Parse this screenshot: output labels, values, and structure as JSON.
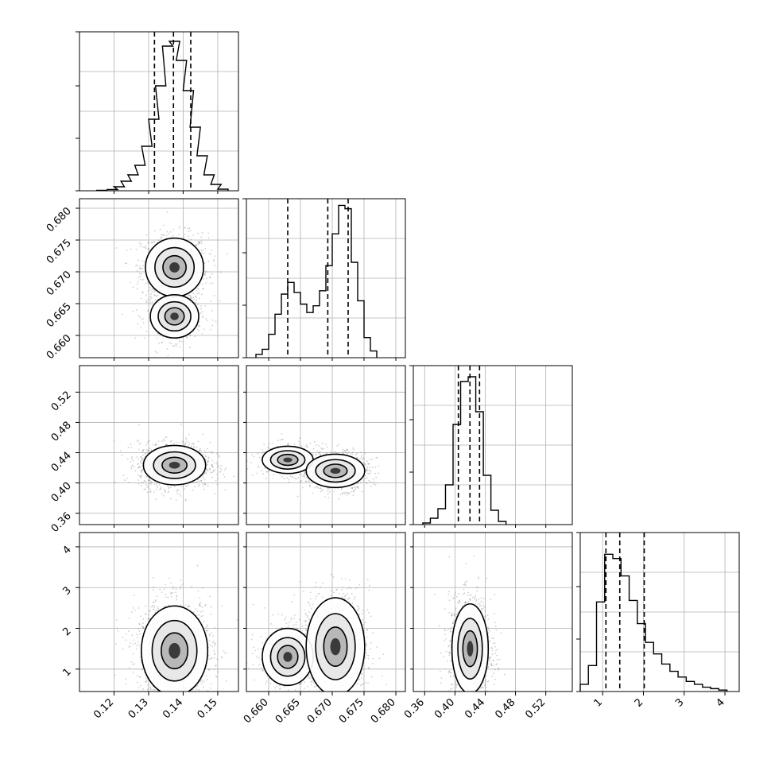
{
  "chart_data": [
    {
      "type": "histogram",
      "parameter_index": 0,
      "xlim": [
        0.11,
        0.156
      ],
      "bins_x": [
        0.1165,
        0.1195,
        0.1215,
        0.1235,
        0.1255,
        0.1275,
        0.1295,
        0.1315,
        0.1335,
        0.1355,
        0.1375,
        0.1395,
        0.1415,
        0.1435,
        0.1455,
        0.1475,
        0.1495,
        0.1515
      ],
      "values": [
        0.3,
        0.8,
        2.5,
        6,
        10,
        16,
        28,
        45,
        66,
        91,
        94,
        82,
        63,
        40,
        22,
        10,
        4,
        1
      ],
      "quantile_lines": [
        0.1317,
        0.1372,
        0.1422
      ],
      "ylim": [
        0,
        100
      ]
    },
    {
      "type": "scatter-density",
      "row": 1,
      "col": 0,
      "xlim": [
        0.11,
        0.156
      ],
      "ylim": [
        0.6565,
        0.6815
      ],
      "modes": [
        {
          "x": 0.1375,
          "y": 0.6707,
          "sx": 0.0042,
          "sy": 0.0023,
          "weight": 0.68
        },
        {
          "x": 0.1375,
          "y": 0.663,
          "sx": 0.0035,
          "sy": 0.0017,
          "weight": 0.32
        }
      ]
    },
    {
      "type": "histogram",
      "parameter_index": 1,
      "xlim": [
        0.6565,
        0.6815
      ],
      "bins_x": [
        0.6585,
        0.6595,
        0.6605,
        0.6615,
        0.6625,
        0.6635,
        0.6645,
        0.6655,
        0.6665,
        0.6675,
        0.6685,
        0.6695,
        0.6705,
        0.6715,
        0.6725,
        0.6735,
        0.6745,
        0.6755,
        0.6765
      ],
      "values": [
        2,
        5,
        14,
        26,
        38,
        45,
        39,
        32,
        27,
        31,
        40,
        55,
        74,
        91,
        89,
        57,
        34,
        12,
        4
      ],
      "quantile_lines": [
        0.663,
        0.6693,
        0.6725
      ],
      "ylim": [
        0,
        95
      ]
    },
    {
      "type": "scatter-density",
      "row": 2,
      "col": 0,
      "xlim": [
        0.11,
        0.156
      ],
      "ylim": [
        0.345,
        0.555
      ],
      "modes": [
        {
          "x": 0.1375,
          "y": 0.4235,
          "sx": 0.0045,
          "sy": 0.013,
          "weight": 1.0
        }
      ]
    },
    {
      "type": "scatter-density",
      "row": 2,
      "col": 1,
      "xlim": [
        0.6565,
        0.6815
      ],
      "ylim": [
        0.345,
        0.555
      ],
      "modes": [
        {
          "x": 0.663,
          "y": 0.4305,
          "sx": 0.002,
          "sy": 0.009,
          "weight": 0.32
        },
        {
          "x": 0.6705,
          "y": 0.416,
          "sx": 0.0023,
          "sy": 0.011,
          "weight": 0.68
        }
      ]
    },
    {
      "type": "histogram",
      "parameter_index": 2,
      "xlim": [
        0.345,
        0.555
      ],
      "bins_x": [
        0.3625,
        0.3725,
        0.3825,
        0.3925,
        0.4025,
        0.4125,
        0.4225,
        0.4325,
        0.4425,
        0.4525,
        0.4625
      ],
      "values": [
        1,
        4,
        10,
        25,
        63,
        90,
        93,
        71,
        31,
        9,
        2
      ],
      "quantile_lines": [
        0.4045,
        0.4198,
        0.4325
      ],
      "ylim": [
        0,
        100
      ]
    },
    {
      "type": "scatter-density",
      "row": 3,
      "col": 0,
      "xlim": [
        0.11,
        0.156
      ],
      "ylim": [
        0.45,
        4.35
      ],
      "modes": [
        {
          "x": 0.1375,
          "y": 1.45,
          "sx": 0.0048,
          "sy": 0.55,
          "weight": 1.0
        }
      ]
    },
    {
      "type": "scatter-density",
      "row": 3,
      "col": 1,
      "xlim": [
        0.6565,
        0.6815
      ],
      "ylim": [
        0.45,
        4.35
      ],
      "modes": [
        {
          "x": 0.663,
          "y": 1.3,
          "sx": 0.002,
          "sy": 0.35,
          "weight": 0.32
        },
        {
          "x": 0.6705,
          "y": 1.55,
          "sx": 0.0023,
          "sy": 0.6,
          "weight": 0.68
        }
      ]
    },
    {
      "type": "scatter-density",
      "row": 3,
      "col": 2,
      "xlim": [
        0.345,
        0.555
      ],
      "ylim": [
        0.45,
        4.35
      ],
      "modes": [
        {
          "x": 0.42,
          "y": 1.5,
          "sx": 0.012,
          "sy": 0.55,
          "weight": 1.0
        }
      ]
    },
    {
      "type": "histogram",
      "parameter_index": 3,
      "xlim": [
        0.45,
        4.35
      ],
      "bins_x": [
        0.55,
        0.75,
        0.95,
        1.15,
        1.35,
        1.55,
        1.75,
        1.95,
        2.15,
        2.35,
        2.55,
        2.75,
        2.95,
        3.15,
        3.35,
        3.55,
        3.75,
        3.95
      ],
      "values": [
        5,
        18,
        62,
        95,
        92,
        80,
        63,
        47,
        34,
        26,
        19,
        14,
        10,
        7,
        5,
        3,
        2,
        1
      ],
      "quantile_lines": [
        1.08,
        1.42,
        2.02
      ],
      "ylim": [
        0,
        110
      ]
    }
  ],
  "axes": {
    "x_ticks": [
      [
        "0.12",
        "0.13",
        "0.14",
        "0.15"
      ],
      [
        "0.660",
        "0.665",
        "0.670",
        "0.675",
        "0.680"
      ],
      [
        "0.36",
        "0.40",
        "0.44",
        "0.48",
        "0.52"
      ],
      [
        "1",
        "2",
        "3",
        "4"
      ]
    ],
    "y_ticks": [
      [],
      [
        "0.660",
        "0.665",
        "0.670",
        "0.675",
        "0.680"
      ],
      [
        "0.36",
        "0.40",
        "0.44",
        "0.48",
        "0.52"
      ],
      [
        "1",
        "2",
        "3",
        "4"
      ]
    ]
  },
  "colors": {
    "line": "#000000",
    "grid": "#b0b0b0",
    "point": "#777777",
    "axes_face": "#ffffff"
  }
}
